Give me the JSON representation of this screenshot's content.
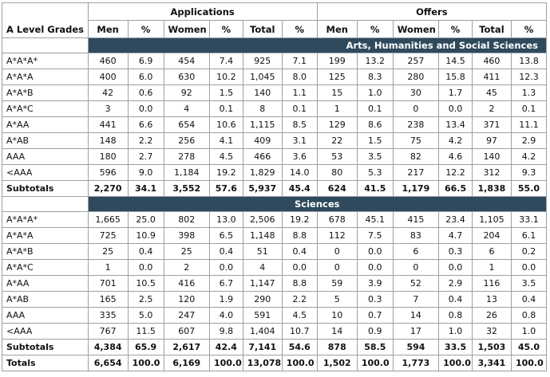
{
  "header": {
    "row_label": "A Level Grades",
    "applications": "Applications",
    "offers": "Offers",
    "cols": [
      "Men",
      "%",
      "Women",
      "%",
      "Total",
      "%",
      "Men",
      "%",
      "Women",
      "%",
      "Total",
      "%"
    ]
  },
  "sections": [
    {
      "title": "Arts, Humanities and Social Sciences",
      "rows": [
        [
          "A*A*A*",
          "460",
          "6.9",
          "454",
          "7.4",
          "925",
          "7.1",
          "199",
          "13.2",
          "257",
          "14.5",
          "460",
          "13.8"
        ],
        [
          "A*A*A",
          "400",
          "6.0",
          "630",
          "10.2",
          "1,045",
          "8.0",
          "125",
          "8.3",
          "280",
          "15.8",
          "411",
          "12.3"
        ],
        [
          "A*A*B",
          "42",
          "0.6",
          "92",
          "1.5",
          "140",
          "1.1",
          "15",
          "1.0",
          "30",
          "1.7",
          "45",
          "1.3"
        ],
        [
          "A*A*C",
          "3",
          "0.0",
          "4",
          "0.1",
          "8",
          "0.1",
          "1",
          "0.1",
          "0",
          "0.0",
          "2",
          "0.1"
        ],
        [
          "A*AA",
          "441",
          "6.6",
          "654",
          "10.6",
          "1,115",
          "8.5",
          "129",
          "8.6",
          "238",
          "13.4",
          "371",
          "11.1"
        ],
        [
          "A*AB",
          "148",
          "2.2",
          "256",
          "4.1",
          "409",
          "3.1",
          "22",
          "1.5",
          "75",
          "4.2",
          "97",
          "2.9"
        ],
        [
          "AAA",
          "180",
          "2.7",
          "278",
          "4.5",
          "466",
          "3.6",
          "53",
          "3.5",
          "82",
          "4.6",
          "140",
          "4.2"
        ],
        [
          "<AAA",
          "596",
          "9.0",
          "1,184",
          "19.2",
          "1,829",
          "14.0",
          "80",
          "5.3",
          "217",
          "12.2",
          "312",
          "9.3"
        ]
      ],
      "subtotal": [
        "Subtotals",
        "2,270",
        "34.1",
        "3,552",
        "57.6",
        "5,937",
        "45.4",
        "624",
        "41.5",
        "1,179",
        "66.5",
        "1,838",
        "55.0"
      ]
    },
    {
      "title": "Sciences",
      "rows": [
        [
          "A*A*A*",
          "1,665",
          "25.0",
          "802",
          "13.0",
          "2,506",
          "19.2",
          "678",
          "45.1",
          "415",
          "23.4",
          "1,105",
          "33.1"
        ],
        [
          "A*A*A",
          "725",
          "10.9",
          "398",
          "6.5",
          "1,148",
          "8.8",
          "112",
          "7.5",
          "83",
          "4.7",
          "204",
          "6.1"
        ],
        [
          "A*A*B",
          "25",
          "0.4",
          "25",
          "0.4",
          "51",
          "0.4",
          "0",
          "0.0",
          "6",
          "0.3",
          "6",
          "0.2"
        ],
        [
          "A*A*C",
          "1",
          "0.0",
          "2",
          "0.0",
          "4",
          "0.0",
          "0",
          "0.0",
          "0",
          "0.0",
          "1",
          "0.0"
        ],
        [
          "A*AA",
          "701",
          "10.5",
          "416",
          "6.7",
          "1,147",
          "8.8",
          "59",
          "3.9",
          "52",
          "2.9",
          "116",
          "3.5"
        ],
        [
          "A*AB",
          "165",
          "2.5",
          "120",
          "1.9",
          "290",
          "2.2",
          "5",
          "0.3",
          "7",
          "0.4",
          "13",
          "0.4"
        ],
        [
          "AAA",
          "335",
          "5.0",
          "247",
          "4.0",
          "591",
          "4.5",
          "10",
          "0.7",
          "14",
          "0.8",
          "26",
          "0.8"
        ],
        [
          "<AAA",
          "767",
          "11.5",
          "607",
          "9.8",
          "1,404",
          "10.7",
          "14",
          "0.9",
          "17",
          "1.0",
          "32",
          "1.0"
        ]
      ],
      "subtotal": [
        "Subtotals",
        "4,384",
        "65.9",
        "2,617",
        "42.4",
        "7,141",
        "54.6",
        "878",
        "58.5",
        "594",
        "33.5",
        "1,503",
        "45.0"
      ]
    }
  ],
  "totals": [
    "Totals",
    "6,654",
    "100.0",
    "6,169",
    "100.0",
    "13,078",
    "100.0",
    "1,502",
    "100.0",
    "1,773",
    "100.0",
    "3,341",
    "100.0"
  ],
  "colors": {
    "section_bg": "#2f4a5c",
    "section_text": "#ffffff",
    "border": "#9aa0a6"
  }
}
